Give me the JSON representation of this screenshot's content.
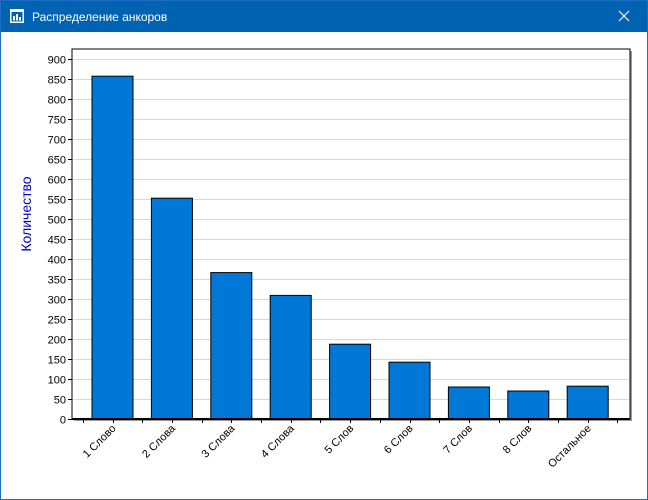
{
  "window": {
    "title": "Распределение анкоров",
    "titlebar_color": "#0063b1"
  },
  "icons": {
    "app": "chart-window-icon",
    "close": "close-icon"
  },
  "chart_data": {
    "type": "bar",
    "categories": [
      "1 Слово",
      "2 Слова",
      "3 Слова",
      "4 Слова",
      "5 Слов",
      "6 Слов",
      "7 Слов",
      "8 Слов",
      "Остальное"
    ],
    "values": [
      857,
      552,
      366,
      309,
      187,
      142,
      80,
      70,
      82
    ],
    "title": "",
    "xlabel": "",
    "ylabel": "Количество",
    "ylim": [
      0,
      900
    ],
    "yticks": [
      0,
      50,
      100,
      150,
      200,
      250,
      300,
      350,
      400,
      450,
      500,
      550,
      600,
      650,
      700,
      750,
      800,
      850,
      900
    ],
    "grid": true,
    "bar_color": "#0078d7",
    "ylabel_color": "#0000cc"
  }
}
